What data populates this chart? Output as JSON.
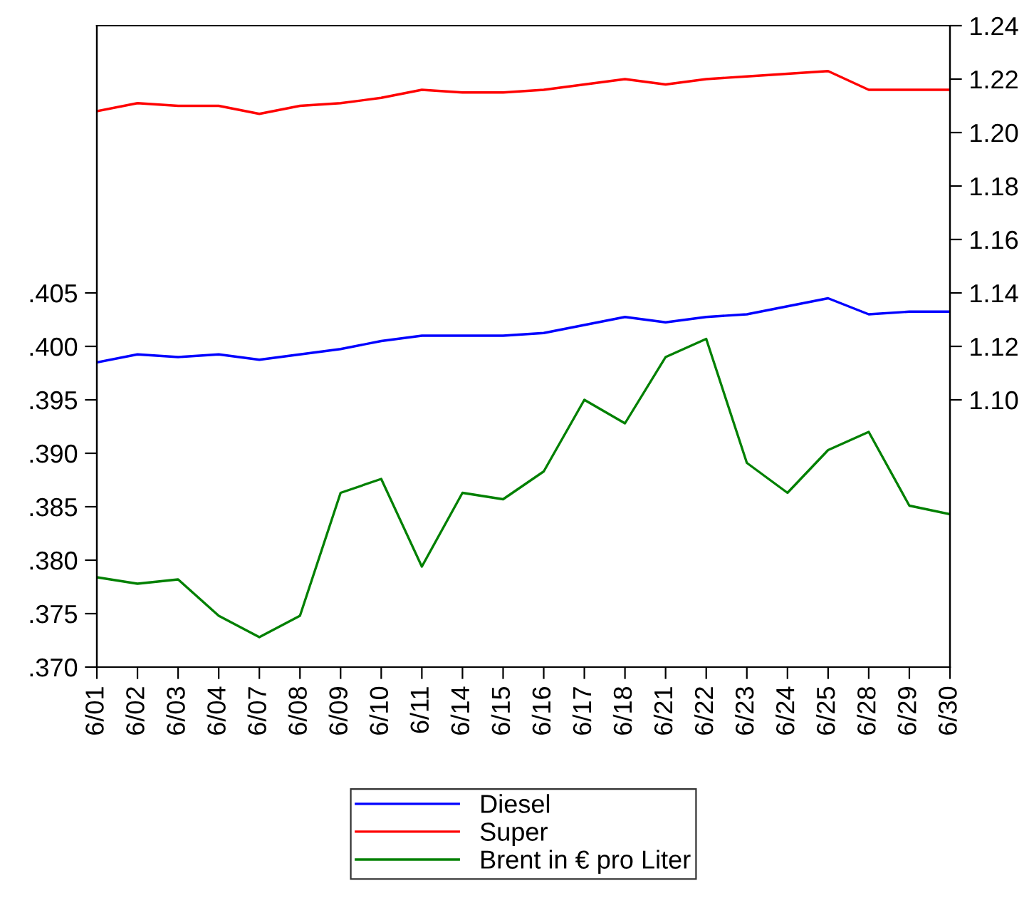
{
  "chart_data": {
    "type": "line",
    "categories": [
      "6/01",
      "6/02",
      "6/03",
      "6/04",
      "6/07",
      "6/08",
      "6/09",
      "6/10",
      "6/11",
      "6/14",
      "6/15",
      "6/16",
      "6/17",
      "6/18",
      "6/21",
      "6/22",
      "6/23",
      "6/24",
      "6/25",
      "6/28",
      "6/29",
      "6/30"
    ],
    "series": [
      {
        "name": "Diesel",
        "color": "#0000ff",
        "axis": "y2",
        "values": [
          1.114,
          1.117,
          1.116,
          1.117,
          1.115,
          1.117,
          1.119,
          1.122,
          1.124,
          1.124,
          1.124,
          1.125,
          1.128,
          1.131,
          1.129,
          1.131,
          1.132,
          1.135,
          1.138,
          1.132,
          1.133,
          1.133
        ]
      },
      {
        "name": "Super",
        "color": "#ff0000",
        "axis": "y2",
        "values": [
          1.208,
          1.211,
          1.21,
          1.21,
          1.207,
          1.21,
          1.211,
          1.213,
          1.216,
          1.215,
          1.215,
          1.216,
          1.218,
          1.22,
          1.218,
          1.22,
          1.221,
          1.222,
          1.223,
          1.216,
          1.216,
          1.216
        ]
      },
      {
        "name": "Brent in € pro Liter",
        "color": "#008000",
        "axis": "y",
        "values": [
          0.3784,
          0.3778,
          0.3782,
          0.3748,
          0.3728,
          0.3748,
          0.3863,
          0.3876,
          0.3794,
          0.3863,
          0.3857,
          0.3883,
          0.395,
          0.3928,
          0.399,
          0.4007,
          0.3891,
          0.3863,
          0.3903,
          0.392,
          0.3851,
          0.3843
        ]
      }
    ],
    "ylim": [
      0.37,
      0.43
    ],
    "yticks": [
      {
        "value": 0.37,
        "label": ".370"
      },
      {
        "value": 0.375,
        "label": ".375"
      },
      {
        "value": 0.38,
        "label": ".380"
      },
      {
        "value": 0.385,
        "label": ".385"
      },
      {
        "value": 0.39,
        "label": ".390"
      },
      {
        "value": 0.395,
        "label": ".395"
      },
      {
        "value": 0.4,
        "label": ".400"
      },
      {
        "value": 0.405,
        "label": ".405"
      }
    ],
    "y2lim": [
      1.0,
      1.24
    ],
    "y2ticks": [
      {
        "value": 1.1,
        "label": "1.10"
      },
      {
        "value": 1.12,
        "label": "1.12"
      },
      {
        "value": 1.14,
        "label": "1.14"
      },
      {
        "value": 1.16,
        "label": "1.16"
      },
      {
        "value": 1.18,
        "label": "1.18"
      },
      {
        "value": 1.2,
        "label": "1.20"
      },
      {
        "value": 1.22,
        "label": "1.22"
      },
      {
        "value": 1.24,
        "label": "1.24"
      }
    ],
    "grid": false,
    "legend": "bottom",
    "line_style": "solid",
    "marker": "none"
  }
}
